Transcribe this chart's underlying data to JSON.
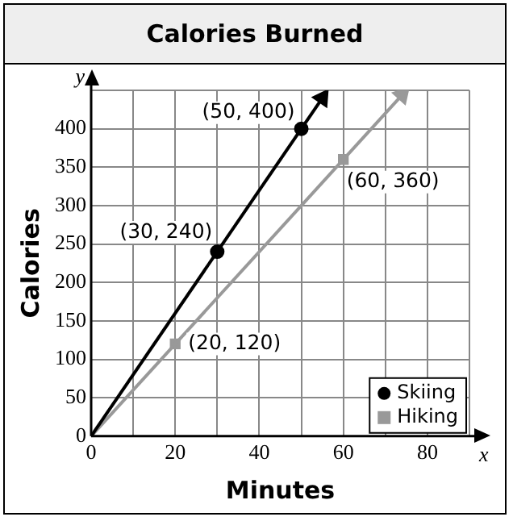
{
  "chart_data": {
    "type": "line",
    "title": "Calories Burned",
    "xlabel": "Minutes",
    "ylabel": "Calories",
    "xlim": [
      0,
      90
    ],
    "ylim": [
      0,
      450
    ],
    "xticks": [
      0,
      {
        "value": 10,
        "label": null
      },
      20,
      {
        "value": 30,
        "label": null
      },
      40,
      {
        "value": 50,
        "label": null
      },
      60,
      {
        "value": 70,
        "label": null
      },
      80,
      {
        "value": 90,
        "label": null
      }
    ],
    "yticks": [
      0,
      50,
      100,
      150,
      200,
      250,
      300,
      350,
      400,
      {
        "value": 450,
        "label": null
      }
    ],
    "grid": true,
    "legend": "bottom right",
    "series": [
      {
        "type": "line",
        "color": "#000000",
        "x": [
          0,
          55
        ],
        "values": [
          0,
          440
        ]
      },
      {
        "type": "line",
        "color": "#999999",
        "x": [
          0,
          74
        ],
        "values": [
          0,
          444
        ]
      },
      {
        "type": "scatter",
        "name": "Skiing",
        "color": "#000000",
        "x": [
          30,
          50
        ],
        "values": [
          240,
          400
        ],
        "marker": "circle"
      },
      {
        "type": "scatter",
        "name": "Hiking",
        "color": "#999999",
        "x": [
          20,
          60
        ],
        "values": [
          120,
          360
        ],
        "marker": "square"
      }
    ],
    "annotations": [
      {
        "text": "(50, 400)",
        "x": 50,
        "y": 400
      },
      {
        "text": "(30, 240)",
        "x": 30,
        "y": 240
      },
      {
        "text": "(60, 360)",
        "x": 60,
        "y": 360
      },
      {
        "text": "(20, 120)",
        "x": 20,
        "y": 120
      },
      "x",
      "y"
    ]
  }
}
